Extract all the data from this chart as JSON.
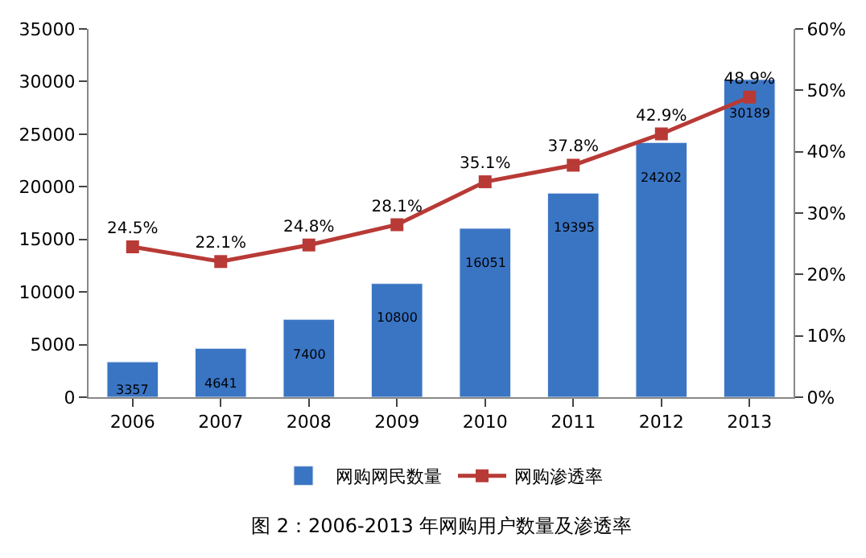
{
  "chart_data": {
    "type": "bar",
    "categories": [
      "2006",
      "2007",
      "2008",
      "2009",
      "2010",
      "2011",
      "2012",
      "2013"
    ],
    "series": [
      {
        "name": "网购网民数量",
        "color": "#3a75c4",
        "values": [
          3357,
          4641,
          7400,
          10800,
          16051,
          19395,
          24202,
          30189
        ]
      },
      {
        "name": "网购渗透率",
        "type": "line",
        "axis": "y2",
        "color": "#b83a36",
        "values": [
          24.5,
          22.1,
          24.8,
          28.1,
          35.1,
          37.8,
          42.9,
          48.9
        ],
        "value_labels": [
          "24.5%",
          "22.1%",
          "24.8%",
          "28.1%",
          "35.1%",
          "37.8%",
          "42.9%",
          "48.9%"
        ]
      }
    ],
    "data_labels": true,
    "ylim": [
      0,
      35000
    ],
    "yticks": [
      0,
      5000,
      10000,
      15000,
      20000,
      25000,
      30000,
      35000
    ],
    "y2lim": [
      0,
      60
    ],
    "y2ticks": [
      {
        "value": 0,
        "label": "0%"
      },
      {
        "value": 10,
        "label": "10%"
      },
      {
        "value": 20,
        "label": "20%"
      },
      {
        "value": 30,
        "label": "30%"
      },
      {
        "value": 40,
        "label": "40%"
      },
      {
        "value": 50,
        "label": "50%"
      },
      {
        "value": 60,
        "label": "60%"
      }
    ],
    "marker": "square",
    "legend": "bottom",
    "annotations": [
      "图 2：2006-2013 年网购用户数量及渗透率"
    ]
  }
}
